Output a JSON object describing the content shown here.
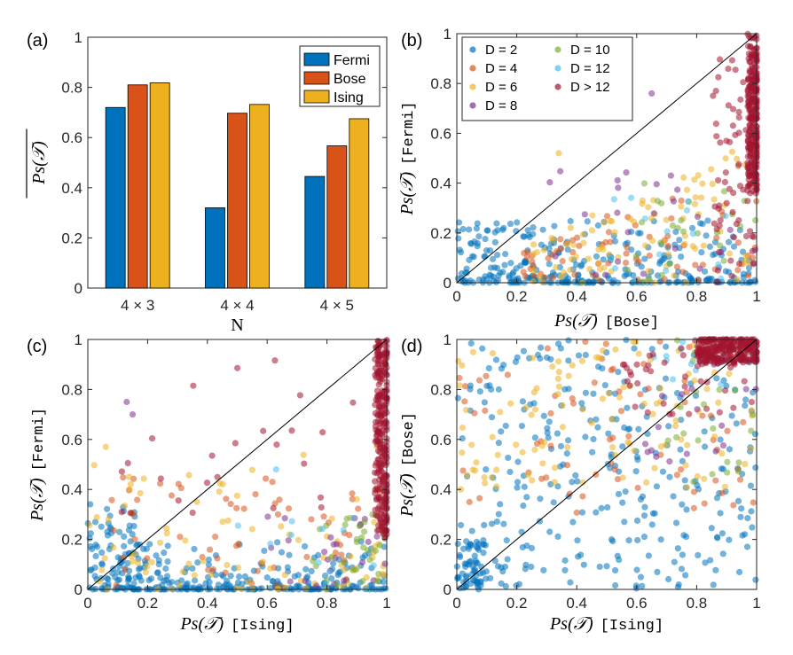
{
  "chart_data": [
    {
      "panel": "(a)",
      "type": "bar",
      "ylabel": "̅P̅s̅(̅𝒯̅)",
      "ylabel_display": "Ps(𝒯)",
      "xlabel": "N",
      "categories": [
        "4 × 3",
        "4 × 4",
        "4 × 5"
      ],
      "series": [
        {
          "name": "Fermi",
          "color": "#0072BD",
          "values": [
            0.72,
            0.32,
            0.445
          ]
        },
        {
          "name": "Bose",
          "color": "#D95319",
          "values": [
            0.81,
            0.697,
            0.567
          ]
        },
        {
          "name": "Ising",
          "color": "#EDB120",
          "values": [
            0.818,
            0.732,
            0.675
          ]
        }
      ],
      "ylim": [
        0,
        1
      ],
      "yticks": [
        "0",
        "0.2",
        "0.4",
        "0.6",
        "0.8",
        "1"
      ],
      "legend": "top-right"
    },
    {
      "panel": "(b)",
      "type": "scatter",
      "xlabel_main": "Ps(𝒯)",
      "xlabel_tag": "[Bose]",
      "ylabel_main": "Ps(𝒯)",
      "ylabel_tag": "[Fermi]",
      "xlim": [
        0,
        1
      ],
      "ylim": [
        0,
        1
      ],
      "ticks": [
        "0",
        "0.2",
        "0.4",
        "0.6",
        "0.8",
        "1"
      ],
      "diagonal": true,
      "legend": "top-left",
      "point_generator": {
        "seed": 7,
        "mode": "fermi_vs_bose"
      }
    },
    {
      "panel": "(c)",
      "type": "scatter",
      "xlabel_main": "Ps(𝒯)",
      "xlabel_tag": "[Ising]",
      "ylabel_main": "Ps(𝒯)",
      "ylabel_tag": "[Fermi]",
      "xlim": [
        0,
        1
      ],
      "ylim": [
        0,
        1
      ],
      "ticks": [
        "0",
        "0.2",
        "0.4",
        "0.6",
        "0.8",
        "1"
      ],
      "diagonal": true,
      "point_generator": {
        "seed": 19,
        "mode": "fermi_vs_ising"
      }
    },
    {
      "panel": "(d)",
      "type": "scatter",
      "xlabel_main": "Ps(𝒯)",
      "xlabel_tag": "[Ising]",
      "ylabel_main": "Ps(𝒯)",
      "ylabel_tag": "[Bose]",
      "xlim": [
        0,
        1
      ],
      "ylim": [
        0,
        1
      ],
      "ticks": [
        "0",
        "0.2",
        "0.4",
        "0.6",
        "0.8",
        "1"
      ],
      "diagonal": true,
      "point_generator": {
        "seed": 31,
        "mode": "bose_vs_ising"
      }
    }
  ],
  "scatter_series": [
    {
      "name": "D = 2",
      "color": "#0072BD"
    },
    {
      "name": "D = 4",
      "color": "#D95319"
    },
    {
      "name": "D = 6",
      "color": "#EDB120"
    },
    {
      "name": "D = 8",
      "color": "#7E2F8E"
    },
    {
      "name": "D = 10",
      "color": "#77AC30"
    },
    {
      "name": "D = 12",
      "color": "#4DBEEE"
    },
    {
      "name": "D > 12",
      "color": "#A2142F"
    }
  ]
}
